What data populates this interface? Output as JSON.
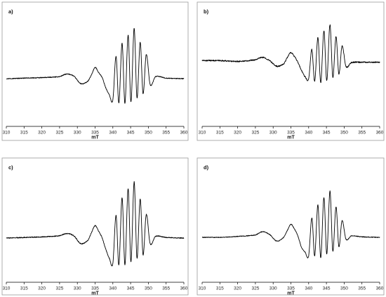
{
  "chart_data": [
    {
      "type": "line",
      "panel_label": "a)",
      "xlabel": "mT",
      "xlim": [
        310,
        360
      ],
      "xticks": [
        310,
        315,
        320,
        325,
        330,
        335,
        340,
        345,
        350,
        355,
        360
      ],
      "noise": 0.015,
      "series": [
        {
          "x": [
            310,
            315,
            320,
            325,
            327,
            329,
            331,
            333,
            334,
            335,
            336,
            337,
            338,
            339,
            340,
            340.9,
            341.7,
            342.6,
            343.4,
            344.3,
            345.1,
            346,
            346.8,
            347.7,
            348.5,
            349.4,
            350.5,
            352,
            355,
            360
          ],
          "y": [
            0,
            0.01,
            0.02,
            0.04,
            0.09,
            0.05,
            -0.1,
            -0.05,
            0.08,
            0.22,
            0.12,
            0.02,
            -0.18,
            -0.32,
            -0.42,
            0.44,
            -0.48,
            0.7,
            -0.49,
            0.86,
            -0.46,
            1.0,
            -0.38,
            0.72,
            -0.3,
            0.48,
            -0.12,
            0.04,
            0.01,
            0
          ]
        }
      ]
    },
    {
      "type": "line",
      "panel_label": "b)",
      "xlabel": "mT",
      "xlim": [
        310,
        360
      ],
      "xticks": [
        310,
        315,
        320,
        325,
        330,
        335,
        340,
        345,
        350,
        355,
        360
      ],
      "noise": 0.03,
      "series": [
        {
          "x": [
            310,
            315,
            320,
            325,
            327,
            329,
            331,
            333,
            334,
            335,
            336,
            337,
            338,
            339,
            340,
            340.9,
            341.7,
            342.6,
            343.4,
            344.3,
            345.1,
            346,
            346.8,
            347.7,
            348.5,
            349.4,
            350.5,
            352,
            355,
            360
          ],
          "y": [
            0.1,
            0.1,
            0.08,
            0.12,
            0.18,
            0.1,
            -0.04,
            0.02,
            0.18,
            0.3,
            0.2,
            0.05,
            -0.15,
            -0.3,
            -0.35,
            0.38,
            -0.42,
            0.68,
            -0.45,
            0.84,
            -0.4,
            1.0,
            -0.32,
            0.7,
            -0.24,
            0.46,
            -0.05,
            0.05,
            0.06,
            0.06
          ]
        }
      ]
    },
    {
      "type": "line",
      "panel_label": "c)",
      "xlabel": "mT",
      "xlim": [
        310,
        360
      ],
      "xticks": [
        310,
        315,
        320,
        325,
        330,
        335,
        340,
        345,
        350,
        355,
        360
      ],
      "noise": 0.015,
      "series": [
        {
          "x": [
            310,
            315,
            320,
            325,
            327,
            329,
            331,
            333,
            334,
            335,
            336,
            337,
            338,
            339,
            340,
            340.9,
            341.7,
            342.6,
            343.4,
            344.3,
            345.1,
            346,
            346.8,
            347.7,
            348.5,
            349.4,
            350.5,
            352,
            355,
            360
          ],
          "y": [
            0,
            0.01,
            0.02,
            0.04,
            0.08,
            0.04,
            -0.1,
            -0.04,
            0.1,
            0.22,
            0.12,
            0.0,
            -0.2,
            -0.36,
            -0.45,
            0.4,
            -0.48,
            0.72,
            -0.48,
            0.88,
            -0.42,
            1.0,
            -0.36,
            0.7,
            -0.3,
            0.42,
            -0.1,
            0.03,
            0.01,
            0
          ]
        }
      ]
    },
    {
      "type": "line",
      "panel_label": "d)",
      "xlabel": "mT",
      "xlim": [
        310,
        360
      ],
      "xticks": [
        310,
        315,
        320,
        325,
        330,
        335,
        340,
        345,
        350,
        355,
        360
      ],
      "noise": 0.015,
      "series": [
        {
          "x": [
            310,
            315,
            320,
            325,
            327,
            329,
            331,
            333,
            334,
            335,
            336,
            337,
            338,
            339,
            340,
            340.9,
            341.7,
            342.6,
            343.4,
            344.3,
            345.1,
            346,
            346.8,
            347.7,
            348.5,
            349.4,
            350.5,
            352,
            355,
            360
          ],
          "y": [
            0,
            0,
            0.02,
            0.05,
            0.12,
            0.06,
            -0.08,
            0.0,
            0.15,
            0.28,
            0.18,
            0.02,
            -0.22,
            -0.32,
            -0.4,
            0.42,
            -0.4,
            0.7,
            -0.44,
            0.86,
            -0.36,
            1.0,
            -0.3,
            0.66,
            -0.2,
            0.36,
            -0.04,
            0.03,
            0.01,
            0
          ]
        }
      ]
    }
  ]
}
